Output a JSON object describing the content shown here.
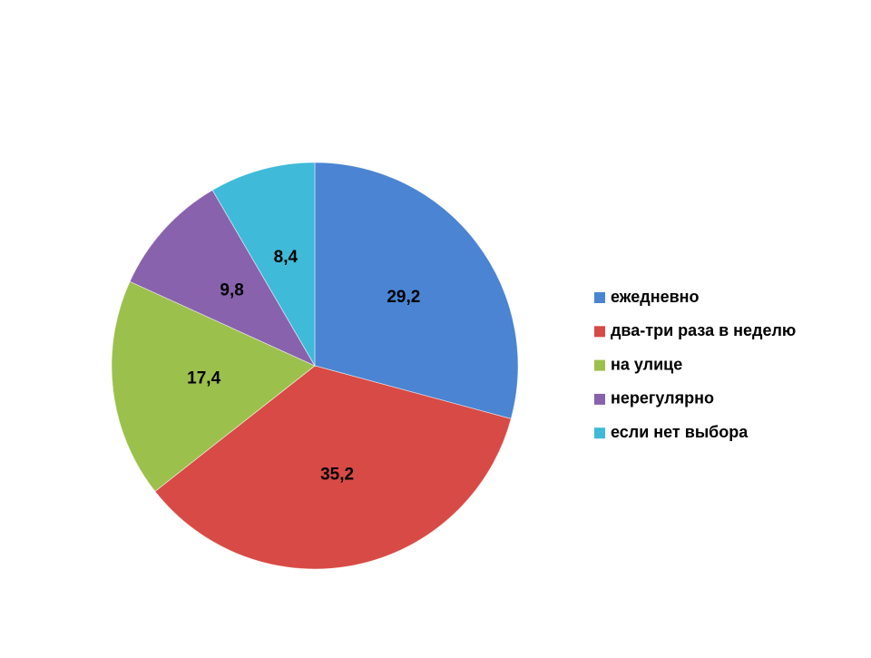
{
  "chart_data": {
    "type": "pie",
    "categories": [
      "ежедневно",
      "два-три раза в неделю",
      "на улице",
      "нерегулярно",
      "если нет выбора"
    ],
    "values": [
      29.2,
      35.2,
      17.4,
      9.8,
      8.4
    ],
    "value_labels": [
      "29,2",
      "35,2",
      "17,4",
      "9,8",
      "8,4"
    ],
    "colors": [
      "#4a84d2",
      "#d84a45",
      "#9cc04c",
      "#8862ad",
      "#3fbad8"
    ],
    "legend": "right"
  }
}
